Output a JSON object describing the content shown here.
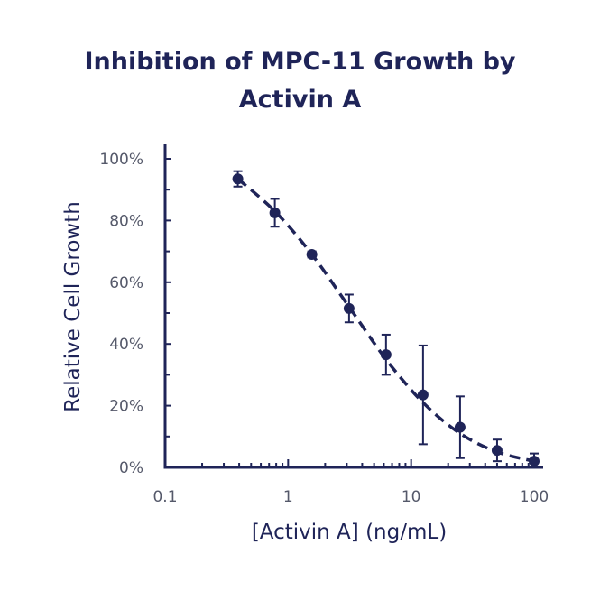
{
  "chart_data": {
    "type": "scatter",
    "title_lines": [
      "Inhibition of MPC-11 Growth by",
      "Activin A"
    ],
    "xlabel": "[Activin A] (ng/mL)",
    "ylabel": "Relative Cell Growth",
    "xscale": "log",
    "xlim": [
      0.1,
      100
    ],
    "ylim": [
      0,
      100
    ],
    "x_ticks": [
      0.1,
      1,
      10,
      100
    ],
    "x_tick_labels": [
      "0.1",
      "1",
      "10",
      "100"
    ],
    "y_ticks": [
      0,
      20,
      40,
      60,
      80,
      100
    ],
    "y_tick_labels": [
      "0%",
      "20%",
      "40%",
      "60%",
      "80%",
      "100%"
    ],
    "grid": false,
    "fit_line": "dashed",
    "series": [
      {
        "x": [
          0.39,
          0.78,
          1.56,
          3.13,
          6.25,
          12.5,
          25,
          50,
          100
        ],
        "y": [
          93.5,
          82.5,
          69,
          51.5,
          36.5,
          23.5,
          13,
          5.5,
          2
        ],
        "err": [
          2.5,
          4.5,
          1.0,
          4.5,
          6.5,
          16,
          10,
          3.5,
          2.5
        ]
      }
    ],
    "fit_curve": {
      "x": [
        0.39,
        0.78,
        1.56,
        3.13,
        6.25,
        12.5,
        25,
        50,
        100
      ],
      "y": [
        93.5,
        83,
        69,
        52,
        35,
        21,
        11,
        5,
        2
      ]
    },
    "color": "#1f2458"
  }
}
